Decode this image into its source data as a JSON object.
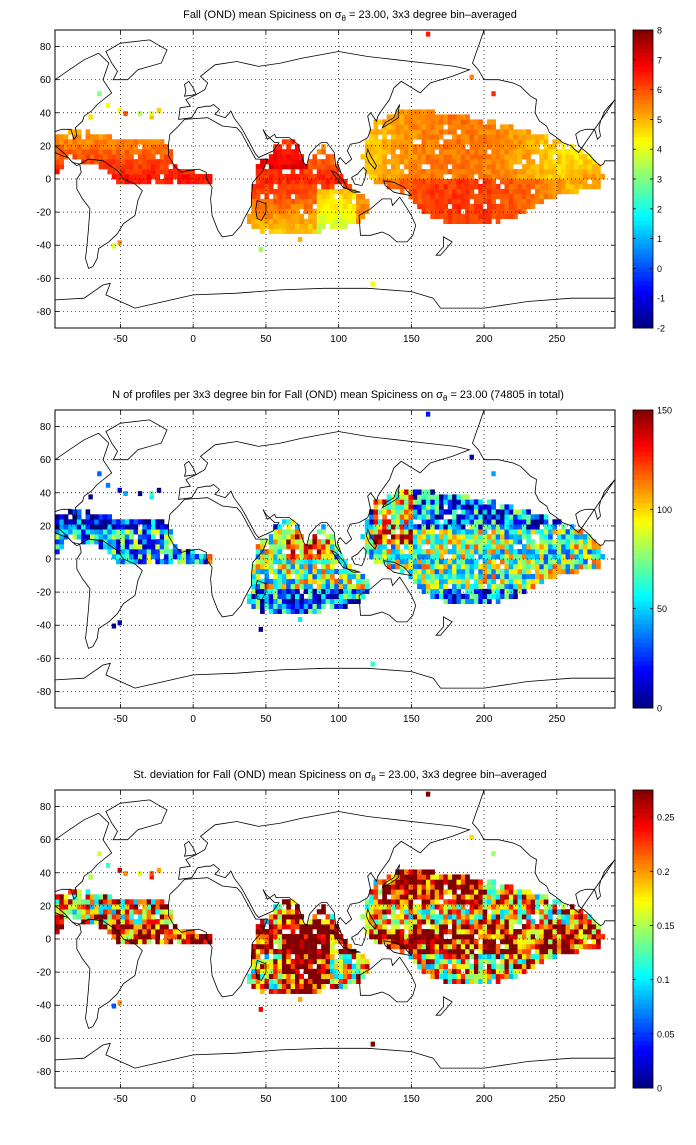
{
  "figure": {
    "panels": [
      {
        "id": "mean",
        "title_main": "Fall (OND) mean Spiciness on ",
        "title_sigma": "σ",
        "title_sub": "θ",
        "title_tail": " = 23.00, 3x3 degree bin–averaged",
        "colorbar": {
          "ticks": [
            "8",
            "7",
            "6",
            "5",
            "4",
            "3",
            "2",
            "1",
            "0",
            "-1",
            "-2"
          ],
          "values": [
            8,
            7,
            6,
            5,
            4,
            3,
            2,
            1,
            0,
            -1,
            -2
          ],
          "range": [
            -2,
            8
          ],
          "colormap": "jet"
        },
        "field_pattern": "mean"
      },
      {
        "id": "count",
        "title_main": "N of profiles per 3x3 degree bin for Fall (OND) mean Spiciness on ",
        "title_sigma": "σ",
        "title_sub": "θ",
        "title_tail": " = 23.00 (74805 in total)",
        "colorbar": {
          "ticks": [
            "150",
            "100",
            "50",
            "0"
          ],
          "values": [
            150,
            100,
            50,
            0
          ],
          "range": [
            0,
            150
          ],
          "colormap": "jet"
        },
        "field_pattern": "count"
      },
      {
        "id": "std",
        "title_main": "St. deviation for Fall (OND) mean Spiciness on ",
        "title_sigma": "σ",
        "title_sub": "θ",
        "title_tail": " = 23.00, 3x3 degree bin–averaged",
        "colorbar": {
          "ticks": [
            "0.25",
            "0.2",
            "0.15",
            "0.1",
            "0.05",
            "0"
          ],
          "values": [
            0.25,
            0.2,
            0.15,
            0.1,
            0.05,
            0
          ],
          "range": [
            0,
            0.275
          ],
          "colormap": "jet"
        },
        "field_pattern": "std"
      }
    ],
    "axes": {
      "lon_range": [
        -95,
        290
      ],
      "lat_range": [
        -90,
        90
      ],
      "x_ticks": [
        "-50",
        "0",
        "50",
        "100",
        "150",
        "200",
        "250"
      ],
      "x_values": [
        -50,
        0,
        50,
        100,
        150,
        200,
        250
      ],
      "y_ticks": [
        "80",
        "60",
        "40",
        "20",
        "0",
        "-20",
        "-40",
        "-60",
        "-80"
      ],
      "y_values": [
        80,
        60,
        40,
        20,
        0,
        -20,
        -40,
        -60,
        -80
      ],
      "grid": "dotted"
    }
  }
}
